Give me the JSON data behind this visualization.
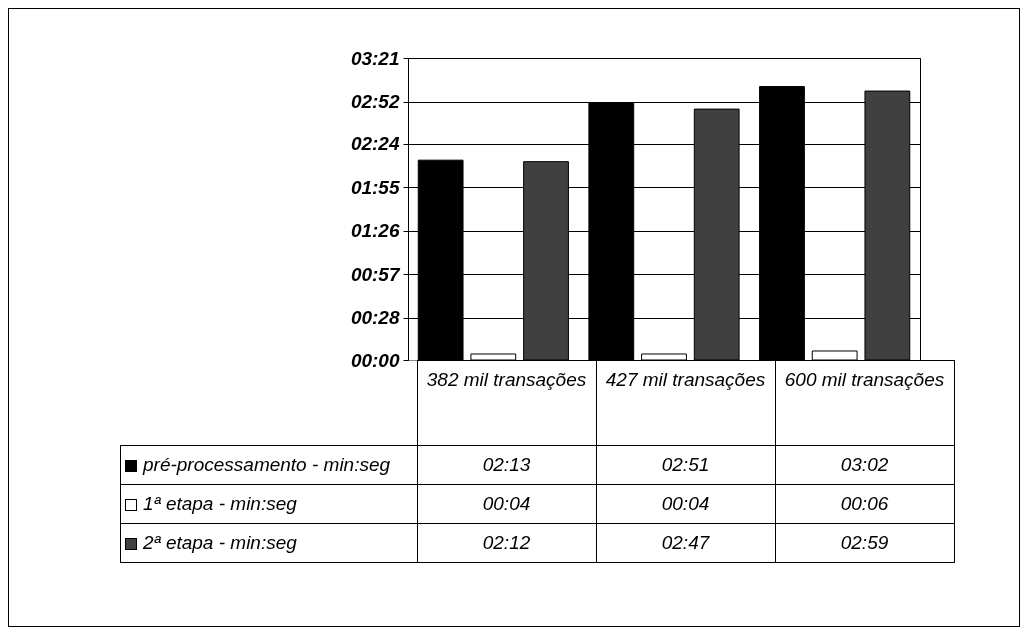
{
  "chart_data": {
    "type": "bar",
    "categories": [
      "382 mil transações",
      "427 mil transações",
      "600 mil transações"
    ],
    "series": [
      {
        "name": "pré-processamento - min:seg",
        "color": "#000000",
        "values": [
          133,
          171,
          182
        ],
        "value_labels": [
          "02:13",
          "02:51",
          "03:02"
        ]
      },
      {
        "name": "1ª etapa - min:seg",
        "color": "#ffffff",
        "values": [
          4,
          4,
          6
        ],
        "value_labels": [
          "00:04",
          "00:04",
          "00:06"
        ]
      },
      {
        "name": "2ª etapa - min:seg",
        "color": "#404040",
        "values": [
          132,
          167,
          179
        ],
        "value_labels": [
          "02:12",
          "02:47",
          "02:59"
        ]
      }
    ],
    "ylim": [
      0,
      201
    ],
    "yticks": [
      {
        "value": 0,
        "label": "00:00"
      },
      {
        "value": 28,
        "label": "00:28"
      },
      {
        "value": 57,
        "label": "00:57"
      },
      {
        "value": 86,
        "label": "01:26"
      },
      {
        "value": 115,
        "label": "01:55"
      },
      {
        "value": 144,
        "label": "02:24"
      },
      {
        "value": 172,
        "label": "02:52"
      },
      {
        "value": 201,
        "label": "03:21"
      }
    ],
    "grid": "y",
    "legend": "bottom left"
  }
}
